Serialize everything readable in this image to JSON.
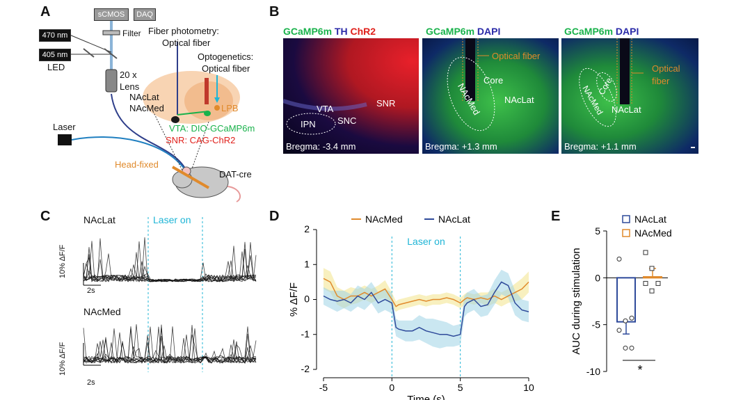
{
  "panels": {
    "a": "A",
    "b": "B",
    "c": "C",
    "d": "D",
    "e": "E"
  },
  "panelA": {
    "scmos": "sCMOS",
    "daq": "DAQ",
    "filter": "Filter",
    "led470": "470 nm",
    "led405": "405 nm",
    "led": "LED",
    "lens_power": "20 x",
    "lens": "Lens",
    "fp_title": "Fiber photometry:",
    "fp_sub": "Optical fiber",
    "og_title": "Optogenetics:",
    "og_sub": "Optical fiber",
    "naclat": "NAcLat",
    "nacmed": "NAcMed",
    "lpb": "LPB",
    "vta": "VTA: DIO-GCaMP6m",
    "snr": "SNR: CAG-ChR2",
    "laser": "Laser",
    "headfixed": "Head-fixed",
    "mouse": "DAT-cre"
  },
  "panelB": {
    "img1": {
      "t1": "GCaMP6m",
      "t2": "TH",
      "t3": "ChR2",
      "ipn": "IPN",
      "vta": "VTA",
      "snc": "SNC",
      "snr": "SNR",
      "bregma": "Bregma: -3.4 mm"
    },
    "img2": {
      "t1": "GCaMP6m",
      "t2": "DAPI",
      "fiber": "Optical fiber",
      "core": "Core",
      "nacmed": "NAcMed",
      "naclat": "NAcLat",
      "bregma": "Bregma: +1.3 mm"
    },
    "img3": {
      "t1": "GCaMP6m",
      "t2": "DAPI",
      "fiber1": "Optical",
      "fiber2": "fiber",
      "core": "Core",
      "nacmed": "NAcMed",
      "naclat": "NAcLat",
      "bregma": "Bregma: +1.1 mm"
    }
  },
  "panelC": {
    "naclat": "NAcLat",
    "nacmed": "NAcMed",
    "laser": "Laser on",
    "scale_y": "10% ΔF/F",
    "scale_x": "2s"
  },
  "colors": {
    "nacmed": "#e08a2c",
    "naclat": "#2e4a9a",
    "cyan": "#1fb5d6",
    "gcamp": "#19b24b",
    "chr2": "#e0201b",
    "dapi": "#2a2aa8"
  },
  "chart_data": [
    {
      "type": "line",
      "id": "D",
      "xlabel": "Time (s)",
      "ylabel": "% ΔF/F",
      "xlim": [
        -5,
        10
      ],
      "ylim": [
        -2,
        2
      ],
      "xticks": [
        "-5",
        "0",
        "5",
        "10"
      ],
      "yticks": [
        "-2",
        "-1",
        "0",
        "1",
        "2"
      ],
      "annotation": "Laser on",
      "laser_window": [
        0,
        5
      ],
      "legend": "top",
      "x": [
        -5,
        -4.5,
        -4,
        -3.5,
        -3,
        -2.5,
        -2,
        -1.5,
        -1,
        -0.5,
        0,
        0.3,
        0.5,
        1,
        1.5,
        2,
        2.5,
        3,
        3.5,
        4,
        4.5,
        5,
        5.3,
        5.5,
        6,
        6.5,
        7,
        7.5,
        8,
        8.5,
        9,
        9.5,
        10
      ],
      "series": [
        {
          "name": "NAcMed",
          "color": "#e08a2c",
          "values": [
            0.6,
            0.5,
            0.1,
            0.0,
            0.1,
            0.1,
            0.2,
            0.1,
            0.2,
            0.3,
            0.0,
            -0.2,
            -0.15,
            -0.1,
            -0.05,
            0.0,
            -0.05,
            0.0,
            0.0,
            0.05,
            0.0,
            -0.1,
            0.0,
            0.05,
            0.0,
            0.05,
            0.0,
            0.1,
            0.0,
            0.1,
            0.2,
            0.3,
            0.5
          ],
          "err": [
            0.3,
            0.3,
            0.25,
            0.25,
            0.25,
            0.2,
            0.2,
            0.2,
            0.2,
            0.25,
            0.2,
            0.15,
            0.15,
            0.15,
            0.15,
            0.15,
            0.15,
            0.15,
            0.15,
            0.15,
            0.15,
            0.15,
            0.15,
            0.15,
            0.15,
            0.15,
            0.2,
            0.2,
            0.2,
            0.2,
            0.25,
            0.3,
            0.3
          ]
        },
        {
          "name": "NAcLat",
          "color": "#2e4a9a",
          "values": [
            0.1,
            0.0,
            -0.05,
            0.0,
            -0.1,
            0.1,
            0.0,
            0.2,
            -0.1,
            0.0,
            -0.1,
            -0.8,
            -0.85,
            -0.9,
            -0.9,
            -0.8,
            -0.9,
            -0.95,
            -1.0,
            -1.0,
            -1.05,
            -1.0,
            -0.2,
            -0.1,
            0.0,
            -0.2,
            -0.15,
            0.2,
            0.5,
            0.4,
            -0.1,
            -0.3,
            -0.35
          ],
          "err": [
            0.25,
            0.25,
            0.3,
            0.25,
            0.25,
            0.3,
            0.3,
            0.3,
            0.3,
            0.3,
            0.3,
            0.25,
            0.25,
            0.3,
            0.3,
            0.35,
            0.35,
            0.4,
            0.4,
            0.35,
            0.3,
            0.3,
            0.3,
            0.3,
            0.3,
            0.3,
            0.3,
            0.35,
            0.35,
            0.35,
            0.35,
            0.3,
            0.3
          ]
        }
      ]
    },
    {
      "type": "bar",
      "id": "E",
      "ylabel": "AUC during stimulation",
      "ylim": [
        -10,
        5
      ],
      "yticks": [
        "5",
        "0",
        "-5",
        "-10"
      ],
      "legend": "top",
      "significance": "*",
      "series": [
        {
          "name": "NAcLat",
          "color": "#2e4a9a",
          "mean": -4.7,
          "sem": 1.3,
          "points": [
            2,
            -4.6,
            -4.3,
            -5.6,
            -7.5,
            -7.5
          ]
        },
        {
          "name": "NAcMed",
          "color": "#e08a2c",
          "mean": 0.1,
          "sem": 0.9,
          "points": [
            2.7,
            1.0,
            -0.6,
            -0.6,
            -1.4
          ]
        }
      ]
    }
  ]
}
